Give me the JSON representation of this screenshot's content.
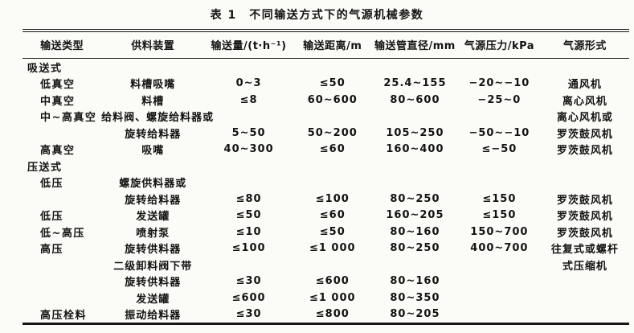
{
  "page": {
    "background": "#fbfbf8",
    "ink": "#131313"
  },
  "title": "表 1　不同输送方式下的气源机械参数",
  "table": {
    "headers": [
      "输送类型",
      "供料装置",
      "输送量/(t·h⁻¹)",
      "输送距离/m",
      "输送管直径/mm",
      "气源压力/kPa",
      "气源形式"
    ],
    "rows": [
      {
        "kind": "section",
        "indent": 0,
        "cells": [
          "吸送式",
          "",
          "",
          "",
          "",
          "",
          ""
        ]
      },
      {
        "kind": "data",
        "indent": 1,
        "cells": [
          "低真空",
          "料槽吸嘴",
          "0~3",
          "≤50",
          "25.4~155",
          "−20~−10",
          "通风机"
        ]
      },
      {
        "kind": "data",
        "indent": 1,
        "cells": [
          "中真空",
          "料槽",
          "≤8",
          "60~600",
          "80~600",
          "−25~0",
          "离心风机"
        ]
      },
      {
        "kind": "data",
        "indent": 1,
        "cells": [
          "中~高真空",
          "给料阀、螺旋给料器或",
          "",
          "",
          "",
          "",
          "离心风机或"
        ]
      },
      {
        "kind": "data",
        "indent": 1,
        "cells": [
          "",
          "旋转给料器",
          "5~50",
          "50~200",
          "105~250",
          "−50~−10",
          "罗茨鼓风机"
        ]
      },
      {
        "kind": "data",
        "indent": 1,
        "cells": [
          "高真空",
          "吸嘴",
          "40~300",
          "≤60",
          "160~400",
          "≤−50",
          "罗茨鼓风机"
        ]
      },
      {
        "kind": "section",
        "indent": 0,
        "cells": [
          "压送式",
          "",
          "",
          "",
          "",
          "",
          ""
        ]
      },
      {
        "kind": "data",
        "indent": 1,
        "cells": [
          "低压",
          "螺旋供料器或",
          "",
          "",
          "",
          "",
          ""
        ]
      },
      {
        "kind": "data",
        "indent": 1,
        "cells": [
          "",
          "旋转给料器",
          "≤80",
          "≤100",
          "80~250",
          "≤150",
          "罗茨鼓风机"
        ]
      },
      {
        "kind": "data",
        "indent": 1,
        "cells": [
          "低压",
          "发送罐",
          "≤50",
          "≤60",
          "160~205",
          "≤150",
          "罗茨鼓风机"
        ]
      },
      {
        "kind": "data",
        "indent": 1,
        "cells": [
          "低~高压",
          "喷射泵",
          "≤10",
          "≤50",
          "80~160",
          "150~700",
          "罗茨鼓风机"
        ]
      },
      {
        "kind": "data",
        "indent": 1,
        "cells": [
          "高压",
          "旋转供料器",
          "≤100",
          "≤1 000",
          "80~250",
          "400~700",
          "往复式或螺杆"
        ]
      },
      {
        "kind": "data",
        "indent": 1,
        "cells": [
          "",
          "二级卸料阀下带",
          "",
          "",
          "",
          "",
          "式压缩机"
        ]
      },
      {
        "kind": "data",
        "indent": 1,
        "cells": [
          "",
          "旋转供料器",
          "≤30",
          "≤600",
          "80~160",
          "",
          ""
        ]
      },
      {
        "kind": "data",
        "indent": 1,
        "cells": [
          "",
          "发送罐",
          "≤600",
          "≤1 000",
          "80~350",
          "",
          ""
        ]
      },
      {
        "kind": "data",
        "indent": 1,
        "cells": [
          "高压栓料",
          "振动给料器",
          "≤30",
          "≤800",
          "80~205",
          "",
          ""
        ]
      }
    ]
  }
}
